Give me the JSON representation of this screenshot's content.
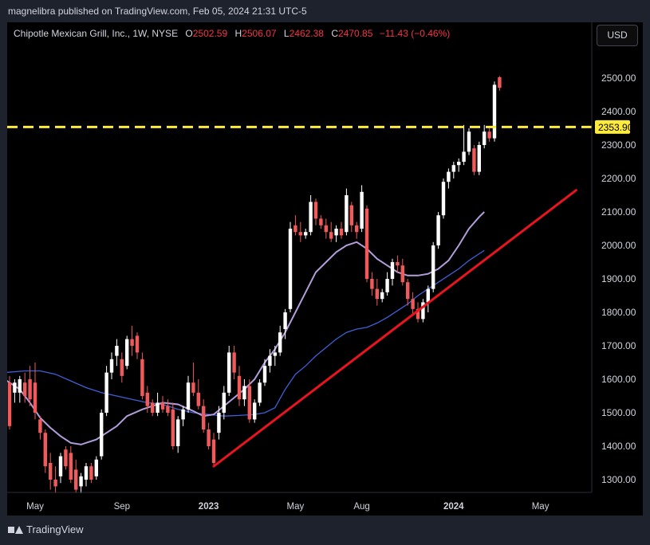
{
  "publisher": "magnelibra published on TradingView.com, Feb 05, 2024 21:31 UTC-5",
  "legend": {
    "symbol": "Chipotle Mexican Grill, Inc., 1W, NYSE",
    "o_label": "O",
    "o": "2502.59",
    "h_label": "H",
    "h": "2506.07",
    "l_label": "L",
    "l": "2462.38",
    "c_label": "C",
    "c": "2470.85",
    "change": "−11.43 (−0.46%)"
  },
  "currency_button": "USD",
  "footer_brand": "TradingView",
  "colors": {
    "up": "#ffffff",
    "down": "#f05a5a",
    "level": "#ffeb3b",
    "trend": "#e8141e",
    "ma_fast": "#b39ddb",
    "ma_slow": "#3f5fd6",
    "axis_text": "#d1d4dc"
  },
  "chart_data": {
    "type": "candlestick",
    "interval": "1W",
    "ylim": [
      1250,
      2600
    ],
    "y_ticks": [
      1300,
      1400,
      1500,
      1600,
      1700,
      1800,
      1900,
      2000,
      2100,
      2200,
      2300,
      2400,
      2500
    ],
    "x_ticks": [
      {
        "label": "May",
        "t": 5
      },
      {
        "label": "Sep",
        "t": 22
      },
      {
        "label": "2023",
        "t": 39,
        "bold": true
      },
      {
        "label": "May",
        "t": 56
      },
      {
        "label": "Aug",
        "t": 69
      },
      {
        "label": "2024",
        "t": 87,
        "bold": true
      },
      {
        "label": "May",
        "t": 104
      }
    ],
    "horizontal_level": {
      "value": 2353.9,
      "label": "2353.90",
      "style": "dashed"
    },
    "trendline": {
      "from": {
        "t": 40,
        "value": 1340
      },
      "to": {
        "t": 111,
        "value": 2165
      }
    },
    "ma_fast": [
      [
        -1,
        1600
      ],
      [
        2,
        1570
      ],
      [
        4,
        1530
      ],
      [
        6,
        1485
      ],
      [
        8,
        1455
      ],
      [
        10,
        1430
      ],
      [
        12,
        1410
      ],
      [
        14,
        1405
      ],
      [
        17,
        1420
      ],
      [
        19,
        1440
      ],
      [
        21,
        1460
      ],
      [
        23,
        1490
      ],
      [
        26,
        1510
      ],
      [
        28,
        1520
      ],
      [
        30,
        1530
      ],
      [
        33,
        1525
      ],
      [
        36,
        1505
      ],
      [
        38,
        1490
      ],
      [
        40,
        1495
      ],
      [
        42,
        1520
      ],
      [
        44,
        1545
      ],
      [
        46,
        1570
      ],
      [
        48,
        1600
      ],
      [
        50,
        1650
      ],
      [
        52,
        1690
      ],
      [
        54,
        1740
      ],
      [
        56,
        1800
      ],
      [
        58,
        1860
      ],
      [
        60,
        1920
      ],
      [
        62,
        1950
      ],
      [
        64,
        1980
      ],
      [
        66,
        2000
      ],
      [
        68,
        2010
      ],
      [
        70,
        1990
      ],
      [
        72,
        1960
      ],
      [
        74,
        1940
      ],
      [
        76,
        1920
      ],
      [
        78,
        1910
      ],
      [
        80,
        1910
      ],
      [
        82,
        1915
      ],
      [
        84,
        1930
      ],
      [
        86,
        1955
      ],
      [
        88,
        2000
      ],
      [
        90,
        2050
      ],
      [
        92,
        2085
      ],
      [
        93,
        2100
      ]
    ],
    "ma_slow": [
      [
        -1,
        1620
      ],
      [
        3,
        1625
      ],
      [
        6,
        1625
      ],
      [
        9,
        1615
      ],
      [
        12,
        1595
      ],
      [
        15,
        1575
      ],
      [
        18,
        1560
      ],
      [
        21,
        1550
      ],
      [
        24,
        1540
      ],
      [
        27,
        1530
      ],
      [
        30,
        1525
      ],
      [
        33,
        1510
      ],
      [
        36,
        1500
      ],
      [
        39,
        1495
      ],
      [
        42,
        1490
      ],
      [
        45,
        1492
      ],
      [
        48,
        1495
      ],
      [
        50,
        1500
      ],
      [
        52,
        1515
      ],
      [
        54,
        1570
      ],
      [
        56,
        1615
      ],
      [
        58,
        1640
      ],
      [
        60,
        1670
      ],
      [
        62,
        1695
      ],
      [
        64,
        1720
      ],
      [
        66,
        1740
      ],
      [
        68,
        1750
      ],
      [
        70,
        1755
      ],
      [
        72,
        1768
      ],
      [
        74,
        1785
      ],
      [
        76,
        1805
      ],
      [
        78,
        1825
      ],
      [
        80,
        1850
      ],
      [
        82,
        1870
      ],
      [
        84,
        1890
      ],
      [
        86,
        1910
      ],
      [
        88,
        1930
      ],
      [
        90,
        1955
      ],
      [
        92,
        1975
      ],
      [
        93,
        1985
      ]
    ],
    "candles": [
      {
        "t": 0,
        "o": 1590,
        "h": 1610,
        "l": 1450,
        "c": 1460
      },
      {
        "t": 1,
        "o": 1560,
        "h": 1600,
        "l": 1530,
        "c": 1590
      },
      {
        "t": 2,
        "o": 1560,
        "h": 1610,
        "l": 1530,
        "c": 1600
      },
      {
        "t": 3,
        "o": 1590,
        "h": 1620,
        "l": 1530,
        "c": 1550
      },
      {
        "t": 4,
        "o": 1600,
        "h": 1640,
        "l": 1520,
        "c": 1540
      },
      {
        "t": 5,
        "o": 1590,
        "h": 1650,
        "l": 1480,
        "c": 1500
      },
      {
        "t": 6,
        "o": 1480,
        "h": 1490,
        "l": 1420,
        "c": 1440
      },
      {
        "t": 7,
        "o": 1440,
        "h": 1450,
        "l": 1320,
        "c": 1340
      },
      {
        "t": 8,
        "o": 1350,
        "h": 1380,
        "l": 1270,
        "c": 1300
      },
      {
        "t": 9,
        "o": 1300,
        "h": 1340,
        "l": 1260,
        "c": 1280
      },
      {
        "t": 10,
        "o": 1310,
        "h": 1380,
        "l": 1290,
        "c": 1370
      },
      {
        "t": 11,
        "o": 1390,
        "h": 1400,
        "l": 1330,
        "c": 1340
      },
      {
        "t": 12,
        "o": 1380,
        "h": 1400,
        "l": 1290,
        "c": 1300
      },
      {
        "t": 13,
        "o": 1330,
        "h": 1360,
        "l": 1260,
        "c": 1270
      },
      {
        "t": 14,
        "o": 1280,
        "h": 1320,
        "l": 1260,
        "c": 1310
      },
      {
        "t": 15,
        "o": 1300,
        "h": 1350,
        "l": 1280,
        "c": 1340
      },
      {
        "t": 16,
        "o": 1340,
        "h": 1350,
        "l": 1290,
        "c": 1300
      },
      {
        "t": 17,
        "o": 1310,
        "h": 1370,
        "l": 1300,
        "c": 1360
      },
      {
        "t": 18,
        "o": 1370,
        "h": 1510,
        "l": 1360,
        "c": 1500
      },
      {
        "t": 19,
        "o": 1500,
        "h": 1640,
        "l": 1490,
        "c": 1620
      },
      {
        "t": 20,
        "o": 1620,
        "h": 1680,
        "l": 1600,
        "c": 1660
      },
      {
        "t": 21,
        "o": 1670,
        "h": 1720,
        "l": 1640,
        "c": 1700
      },
      {
        "t": 22,
        "o": 1660,
        "h": 1680,
        "l": 1590,
        "c": 1610
      },
      {
        "t": 23,
        "o": 1640,
        "h": 1730,
        "l": 1630,
        "c": 1720
      },
      {
        "t": 24,
        "o": 1720,
        "h": 1760,
        "l": 1670,
        "c": 1700
      },
      {
        "t": 25,
        "o": 1730,
        "h": 1740,
        "l": 1660,
        "c": 1680
      },
      {
        "t": 26,
        "o": 1660,
        "h": 1680,
        "l": 1540,
        "c": 1550
      },
      {
        "t": 27,
        "o": 1560,
        "h": 1580,
        "l": 1500,
        "c": 1520
      },
      {
        "t": 28,
        "o": 1530,
        "h": 1540,
        "l": 1490,
        "c": 1500
      },
      {
        "t": 29,
        "o": 1500,
        "h": 1560,
        "l": 1490,
        "c": 1530
      },
      {
        "t": 30,
        "o": 1530,
        "h": 1550,
        "l": 1500,
        "c": 1510
      },
      {
        "t": 31,
        "o": 1520,
        "h": 1540,
        "l": 1490,
        "c": 1500
      },
      {
        "t": 32,
        "o": 1510,
        "h": 1530,
        "l": 1390,
        "c": 1400
      },
      {
        "t": 33,
        "o": 1400,
        "h": 1490,
        "l": 1380,
        "c": 1480
      },
      {
        "t": 34,
        "o": 1480,
        "h": 1520,
        "l": 1460,
        "c": 1510
      },
      {
        "t": 35,
        "o": 1510,
        "h": 1610,
        "l": 1500,
        "c": 1590
      },
      {
        "t": 36,
        "o": 1590,
        "h": 1650,
        "l": 1550,
        "c": 1560
      },
      {
        "t": 37,
        "o": 1560,
        "h": 1600,
        "l": 1510,
        "c": 1520
      },
      {
        "t": 38,
        "o": 1520,
        "h": 1540,
        "l": 1440,
        "c": 1450
      },
      {
        "t": 39,
        "o": 1450,
        "h": 1470,
        "l": 1390,
        "c": 1400
      },
      {
        "t": 40,
        "o": 1420,
        "h": 1440,
        "l": 1340,
        "c": 1350
      },
      {
        "t": 41,
        "o": 1440,
        "h": 1520,
        "l": 1420,
        "c": 1500
      },
      {
        "t": 42,
        "o": 1500,
        "h": 1580,
        "l": 1480,
        "c": 1560
      },
      {
        "t": 43,
        "o": 1560,
        "h": 1700,
        "l": 1550,
        "c": 1680
      },
      {
        "t": 44,
        "o": 1680,
        "h": 1700,
        "l": 1600,
        "c": 1620
      },
      {
        "t": 45,
        "o": 1610,
        "h": 1640,
        "l": 1520,
        "c": 1540
      },
      {
        "t": 46,
        "o": 1540,
        "h": 1600,
        "l": 1520,
        "c": 1580
      },
      {
        "t": 47,
        "o": 1580,
        "h": 1600,
        "l": 1470,
        "c": 1480
      },
      {
        "t": 48,
        "o": 1480,
        "h": 1540,
        "l": 1470,
        "c": 1530
      },
      {
        "t": 49,
        "o": 1530,
        "h": 1600,
        "l": 1520,
        "c": 1590
      },
      {
        "t": 50,
        "o": 1590,
        "h": 1660,
        "l": 1580,
        "c": 1640
      },
      {
        "t": 51,
        "o": 1640,
        "h": 1690,
        "l": 1620,
        "c": 1670
      },
      {
        "t": 52,
        "o": 1670,
        "h": 1700,
        "l": 1640,
        "c": 1680
      },
      {
        "t": 53,
        "o": 1680,
        "h": 1760,
        "l": 1670,
        "c": 1740
      },
      {
        "t": 54,
        "o": 1750,
        "h": 1810,
        "l": 1720,
        "c": 1800
      },
      {
        "t": 55,
        "o": 1810,
        "h": 2070,
        "l": 1800,
        "c": 2050
      },
      {
        "t": 56,
        "o": 2060,
        "h": 2090,
        "l": 2030,
        "c": 2040
      },
      {
        "t": 57,
        "o": 2040,
        "h": 2070,
        "l": 2010,
        "c": 2030
      },
      {
        "t": 58,
        "o": 2030,
        "h": 2050,
        "l": 2020,
        "c": 2040
      },
      {
        "t": 59,
        "o": 2040,
        "h": 2150,
        "l": 2030,
        "c": 2130
      },
      {
        "t": 60,
        "o": 2130,
        "h": 2140,
        "l": 2060,
        "c": 2080
      },
      {
        "t": 61,
        "o": 2080,
        "h": 2090,
        "l": 2050,
        "c": 2060
      },
      {
        "t": 62,
        "o": 2060,
        "h": 2080,
        "l": 2020,
        "c": 2040
      },
      {
        "t": 63,
        "o": 2040,
        "h": 2070,
        "l": 2010,
        "c": 2020
      },
      {
        "t": 64,
        "o": 2030,
        "h": 2060,
        "l": 2010,
        "c": 2050
      },
      {
        "t": 65,
        "o": 2050,
        "h": 2070,
        "l": 2020,
        "c": 2030
      },
      {
        "t": 66,
        "o": 2040,
        "h": 2170,
        "l": 2030,
        "c": 2150
      },
      {
        "t": 67,
        "o": 2120,
        "h": 2130,
        "l": 2040,
        "c": 2060
      },
      {
        "t": 68,
        "o": 2060,
        "h": 2070,
        "l": 2020,
        "c": 2040
      },
      {
        "t": 69,
        "o": 2050,
        "h": 2180,
        "l": 2040,
        "c": 2160
      },
      {
        "t": 70,
        "o": 2110,
        "h": 2120,
        "l": 1890,
        "c": 1900
      },
      {
        "t": 71,
        "o": 1900,
        "h": 1920,
        "l": 1850,
        "c": 1870
      },
      {
        "t": 72,
        "o": 1870,
        "h": 1900,
        "l": 1820,
        "c": 1840
      },
      {
        "t": 73,
        "o": 1840,
        "h": 1870,
        "l": 1830,
        "c": 1860
      },
      {
        "t": 74,
        "o": 1860,
        "h": 1920,
        "l": 1850,
        "c": 1900
      },
      {
        "t": 75,
        "o": 1900,
        "h": 1960,
        "l": 1880,
        "c": 1950
      },
      {
        "t": 76,
        "o": 1950,
        "h": 1970,
        "l": 1920,
        "c": 1940
      },
      {
        "t": 77,
        "o": 1940,
        "h": 1960,
        "l": 1880,
        "c": 1890
      },
      {
        "t": 78,
        "o": 1890,
        "h": 1900,
        "l": 1820,
        "c": 1840
      },
      {
        "t": 79,
        "o": 1840,
        "h": 1860,
        "l": 1790,
        "c": 1810
      },
      {
        "t": 80,
        "o": 1810,
        "h": 1830,
        "l": 1770,
        "c": 1780
      },
      {
        "t": 81,
        "o": 1780,
        "h": 1840,
        "l": 1770,
        "c": 1830
      },
      {
        "t": 82,
        "o": 1830,
        "h": 1880,
        "l": 1800,
        "c": 1870
      },
      {
        "t": 83,
        "o": 1870,
        "h": 2010,
        "l": 1860,
        "c": 2000
      },
      {
        "t": 84,
        "o": 2000,
        "h": 2100,
        "l": 1990,
        "c": 2090
      },
      {
        "t": 85,
        "o": 2090,
        "h": 2200,
        "l": 2080,
        "c": 2190
      },
      {
        "t": 86,
        "o": 2190,
        "h": 2230,
        "l": 2170,
        "c": 2220
      },
      {
        "t": 87,
        "o": 2220,
        "h": 2250,
        "l": 2200,
        "c": 2240
      },
      {
        "t": 88,
        "o": 2240,
        "h": 2260,
        "l": 2220,
        "c": 2250
      },
      {
        "t": 89,
        "o": 2250,
        "h": 2360,
        "l": 2240,
        "c": 2280
      },
      {
        "t": 90,
        "o": 2280,
        "h": 2350,
        "l": 2270,
        "c": 2340
      },
      {
        "t": 91,
        "o": 2290,
        "h": 2300,
        "l": 2210,
        "c": 2220
      },
      {
        "t": 92,
        "o": 2220,
        "h": 2310,
        "l": 2210,
        "c": 2300
      },
      {
        "t": 93,
        "o": 2300,
        "h": 2360,
        "l": 2290,
        "c": 2340
      },
      {
        "t": 94,
        "o": 2340,
        "h": 2350,
        "l": 2310,
        "c": 2320
      },
      {
        "t": 95,
        "o": 2320,
        "h": 2490,
        "l": 2310,
        "c": 2480
      },
      {
        "t": 96,
        "o": 2502.59,
        "h": 2506.07,
        "l": 2462.38,
        "c": 2470.85
      }
    ]
  }
}
